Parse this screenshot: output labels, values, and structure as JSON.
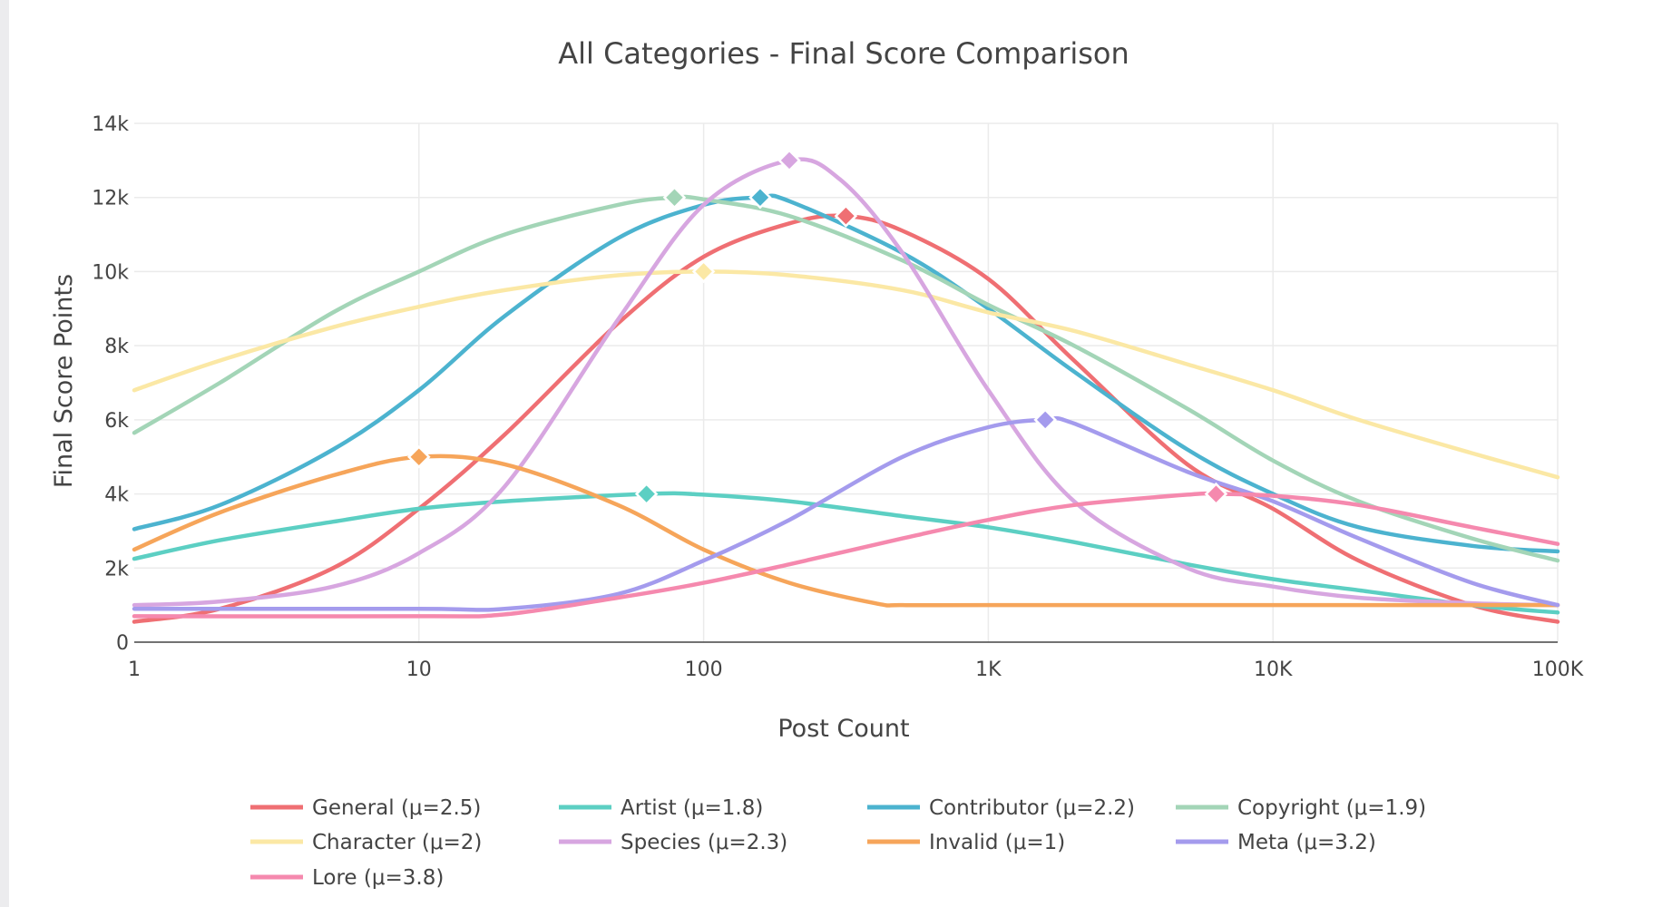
{
  "chart_data": {
    "type": "line",
    "title": "All Categories - Final Score Comparison",
    "xlabel": "Post Count",
    "ylabel": "Final Score Points",
    "x_scale": "log",
    "xlim": [
      1,
      100000
    ],
    "ylim": [
      0,
      14000
    ],
    "x_ticks": [
      {
        "value": 1,
        "label": "1"
      },
      {
        "value": 10,
        "label": "10"
      },
      {
        "value": 100,
        "label": "100"
      },
      {
        "value": 1000,
        "label": "1K"
      },
      {
        "value": 10000,
        "label": "10K"
      },
      {
        "value": 100000,
        "label": "100K"
      }
    ],
    "y_ticks": [
      {
        "value": 0,
        "label": "0"
      },
      {
        "value": 2000,
        "label": "2k"
      },
      {
        "value": 4000,
        "label": "4k"
      },
      {
        "value": 6000,
        "label": "6k"
      },
      {
        "value": 8000,
        "label": "8k"
      },
      {
        "value": 10000,
        "label": "10k"
      },
      {
        "value": 12000,
        "label": "12k"
      },
      {
        "value": 14000,
        "label": "14k"
      }
    ],
    "grid": true,
    "legend_position": "bottom",
    "series": [
      {
        "name": "General (μ=2.5)",
        "color": "#ef6f73",
        "peak": {
          "x": 316,
          "y": 11500
        },
        "x": [
          1,
          2,
          5,
          10,
          20,
          50,
          100,
          200,
          316,
          500,
          1000,
          2000,
          5000,
          10000,
          20000,
          50000,
          100000
        ],
        "y": [
          550,
          900,
          2000,
          3600,
          5600,
          8600,
          10400,
          11300,
          11500,
          11100,
          9800,
          7600,
          4800,
          3600,
          2200,
          1000,
          550
        ]
      },
      {
        "name": "Artist (μ=1.8)",
        "color": "#5ccfc3",
        "peak": {
          "x": 63,
          "y": 4000
        },
        "x": [
          1,
          2,
          5,
          10,
          20,
          63,
          100,
          200,
          500,
          1000,
          2000,
          5000,
          10000,
          20000,
          50000,
          100000
        ],
        "y": [
          2250,
          2750,
          3250,
          3600,
          3800,
          4000,
          3980,
          3800,
          3400,
          3100,
          2700,
          2100,
          1700,
          1400,
          1000,
          800
        ]
      },
      {
        "name": "Contributor (μ=2.2)",
        "color": "#4cb3cf",
        "peak": {
          "x": 158,
          "y": 12000
        },
        "x": [
          1,
          2,
          5,
          10,
          20,
          50,
          100,
          158,
          200,
          500,
          1000,
          2000,
          5000,
          10000,
          20000,
          50000,
          100000
        ],
        "y": [
          3050,
          3700,
          5200,
          6800,
          8800,
          10900,
          11800,
          12000,
          11900,
          10500,
          9000,
          7300,
          5200,
          4000,
          3100,
          2600,
          2450
        ]
      },
      {
        "name": "Copyright (μ=1.9)",
        "color": "#a3d5b7",
        "peak": {
          "x": 79,
          "y": 12000
        },
        "x": [
          1,
          2,
          5,
          10,
          20,
          50,
          79,
          100,
          200,
          500,
          1000,
          2000,
          5000,
          10000,
          20000,
          50000,
          100000
        ],
        "y": [
          5650,
          7000,
          8900,
          10000,
          11000,
          11800,
          12000,
          11950,
          11500,
          10300,
          9100,
          8000,
          6300,
          4900,
          3800,
          2800,
          2200
        ]
      },
      {
        "name": "Character (μ=2)",
        "color": "#fbe8a5",
        "peak": {
          "x": 100,
          "y": 10000
        },
        "x": [
          1,
          2,
          5,
          10,
          20,
          50,
          100,
          200,
          500,
          1000,
          2000,
          5000,
          10000,
          20000,
          50000,
          100000
        ],
        "y": [
          6800,
          7600,
          8500,
          9050,
          9500,
          9900,
          10000,
          9900,
          9500,
          8900,
          8400,
          7500,
          6800,
          6000,
          5100,
          4450
        ]
      },
      {
        "name": "Species (μ=2.3)",
        "color": "#d7a6e0",
        "peak": {
          "x": 200,
          "y": 13000
        },
        "x": [
          1,
          2,
          5,
          10,
          20,
          50,
          100,
          200,
          300,
          500,
          1000,
          2000,
          5000,
          10000,
          20000,
          50000,
          100000
        ],
        "y": [
          1000,
          1100,
          1500,
          2400,
          4200,
          8700,
          11800,
          13000,
          12500,
          10500,
          6800,
          3800,
          2000,
          1500,
          1200,
          1050,
          1000
        ]
      },
      {
        "name": "Invalid (μ=1)",
        "color": "#f6a55a",
        "peak": {
          "x": 10,
          "y": 5000
        },
        "x": [
          1,
          2,
          5,
          10,
          20,
          50,
          100,
          200,
          400,
          500,
          1000,
          10000,
          100000
        ],
        "y": [
          2500,
          3500,
          4500,
          5000,
          4800,
          3700,
          2500,
          1600,
          1050,
          1000,
          1000,
          1000,
          1000
        ]
      },
      {
        "name": "Meta (μ=3.2)",
        "color": "#a49bed",
        "peak": {
          "x": 1585,
          "y": 6000
        },
        "x": [
          1,
          10,
          20,
          50,
          100,
          200,
          500,
          1000,
          1585,
          2000,
          5000,
          10000,
          20000,
          50000,
          100000
        ],
        "y": [
          900,
          900,
          900,
          1300,
          2200,
          3300,
          5000,
          5800,
          6000,
          5900,
          4600,
          3800,
          2800,
          1600,
          1000
        ]
      },
      {
        "name": "Lore (μ=3.8)",
        "color": "#f589ae",
        "peak": {
          "x": 6310,
          "y": 4000
        },
        "x": [
          1,
          10,
          20,
          50,
          100,
          200,
          500,
          1000,
          2000,
          5000,
          6310,
          10000,
          20000,
          50000,
          100000
        ],
        "y": [
          700,
          700,
          750,
          1200,
          1600,
          2100,
          2800,
          3300,
          3700,
          3980,
          4000,
          3950,
          3700,
          3100,
          2650
        ]
      }
    ]
  }
}
